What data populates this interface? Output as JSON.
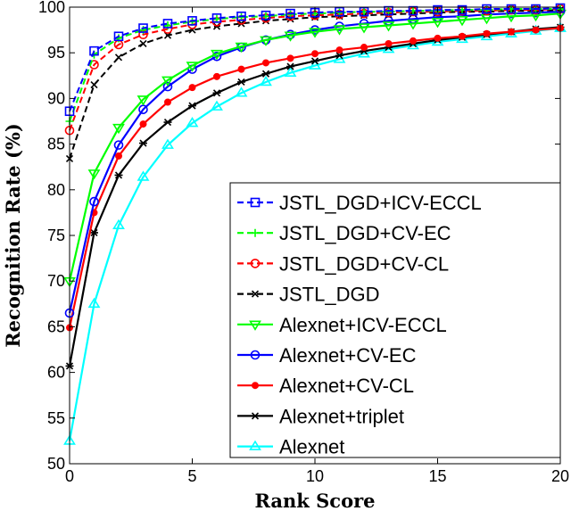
{
  "chart_data": {
    "type": "line",
    "xlabel": "Rank Score",
    "ylabel": "Recognition Rate  (%)",
    "xlim": [
      0,
      20
    ],
    "ylim": [
      50,
      100
    ],
    "xticks": [
      0,
      5,
      10,
      15,
      20
    ],
    "yticks": [
      50,
      55,
      60,
      65,
      70,
      75,
      80,
      85,
      90,
      95,
      100
    ],
    "grid": false,
    "legend_placement": "bottom-right",
    "x": [
      0,
      1,
      2,
      3,
      4,
      5,
      6,
      7,
      8,
      9,
      10,
      11,
      12,
      13,
      14,
      15,
      16,
      17,
      18,
      19,
      20
    ],
    "series": [
      {
        "name": "JSTL_DGD+ICV-ECCL",
        "color": "#0000ff",
        "dash": true,
        "marker": "square",
        "values": [
          88.6,
          95.2,
          96.8,
          97.7,
          98.2,
          98.5,
          98.8,
          99.0,
          99.1,
          99.3,
          99.4,
          99.5,
          99.5,
          99.6,
          99.6,
          99.7,
          99.7,
          99.8,
          99.8,
          99.8,
          99.9
        ]
      },
      {
        "name": "JSTL_DGD+CV-EC",
        "color": "#00ff00",
        "dash": true,
        "marker": "plus",
        "values": [
          87.5,
          94.8,
          96.6,
          97.5,
          98.0,
          98.4,
          98.7,
          98.9,
          99.0,
          99.2,
          99.3,
          99.4,
          99.5,
          99.5,
          99.6,
          99.6,
          99.7,
          99.7,
          99.8,
          99.8,
          99.8
        ]
      },
      {
        "name": "JSTL_DGD+CV-CL",
        "color": "#ff0000",
        "dash": true,
        "marker": "circle",
        "values": [
          86.5,
          93.7,
          95.9,
          97.0,
          97.6,
          98.1,
          98.4,
          98.6,
          98.8,
          99.0,
          99.1,
          99.2,
          99.3,
          99.4,
          99.5,
          99.5,
          99.6,
          99.6,
          99.7,
          99.7,
          99.8
        ]
      },
      {
        "name": "JSTL_DGD",
        "color": "#000000",
        "dash": true,
        "marker": "x",
        "values": [
          83.4,
          91.5,
          94.5,
          96.0,
          96.9,
          97.5,
          97.9,
          98.2,
          98.5,
          98.7,
          98.9,
          99.0,
          99.1,
          99.2,
          99.3,
          99.4,
          99.5,
          99.5,
          99.6,
          99.6,
          99.7
        ]
      },
      {
        "name": "Alexnet+ICV-ECCL",
        "color": "#00ff00",
        "dash": false,
        "marker": "triangle-down",
        "values": [
          70.0,
          81.8,
          86.8,
          89.9,
          92.0,
          93.6,
          94.9,
          95.7,
          96.4,
          96.9,
          97.3,
          97.6,
          97.8,
          98.0,
          98.2,
          98.4,
          98.6,
          98.8,
          99.0,
          99.1,
          99.3
        ]
      },
      {
        "name": "Alexnet+CV-EC",
        "color": "#0000ff",
        "dash": false,
        "marker": "circle",
        "values": [
          66.5,
          78.7,
          84.9,
          88.8,
          91.3,
          93.2,
          94.6,
          95.6,
          96.4,
          97.0,
          97.5,
          97.9,
          98.2,
          98.5,
          98.7,
          98.9,
          99.0,
          99.2,
          99.3,
          99.4,
          99.5
        ]
      },
      {
        "name": "Alexnet+CV-CL",
        "color": "#ff0000",
        "dash": false,
        "marker": "dot",
        "values": [
          64.9,
          77.5,
          83.7,
          87.2,
          89.6,
          91.2,
          92.4,
          93.2,
          93.9,
          94.4,
          94.9,
          95.3,
          95.6,
          96.0,
          96.3,
          96.6,
          96.8,
          97.1,
          97.3,
          97.5,
          97.7
        ]
      },
      {
        "name": "Alexnet+triplet",
        "color": "#000000",
        "dash": false,
        "marker": "star",
        "values": [
          60.7,
          75.3,
          81.6,
          85.1,
          87.4,
          89.2,
          90.6,
          91.8,
          92.7,
          93.5,
          94.1,
          94.7,
          95.2,
          95.6,
          96.0,
          96.4,
          96.7,
          97.0,
          97.3,
          97.6,
          97.8
        ]
      },
      {
        "name": "Alexnet",
        "color": "#00ffff",
        "dash": false,
        "marker": "triangle-up",
        "values": [
          52.5,
          67.5,
          76.1,
          81.4,
          84.9,
          87.3,
          89.1,
          90.6,
          91.8,
          92.8,
          93.6,
          94.3,
          94.9,
          95.4,
          95.8,
          96.2,
          96.5,
          96.8,
          97.1,
          97.4,
          97.7
        ]
      }
    ]
  }
}
